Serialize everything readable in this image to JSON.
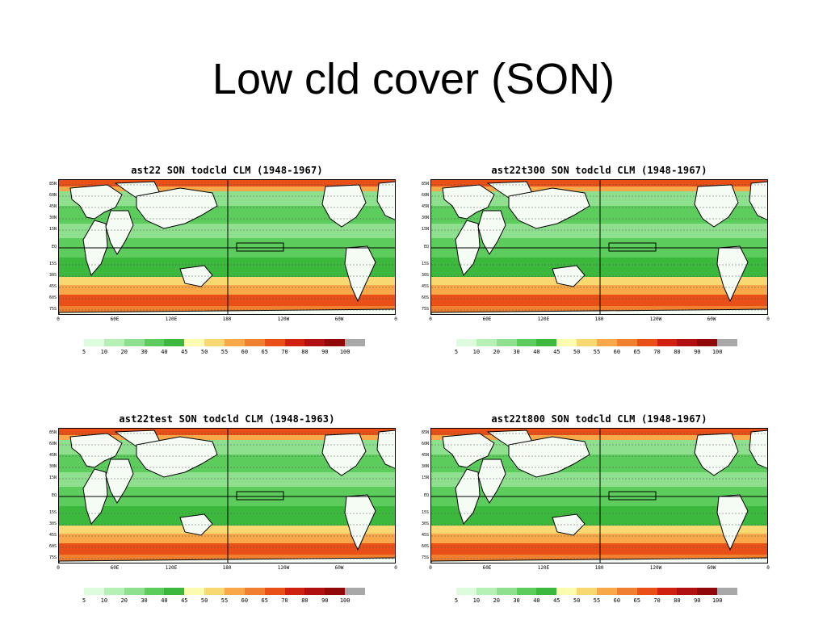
{
  "slide": {
    "title": "Low cld cover (SON)"
  },
  "panels": [
    {
      "title": "ast22 SON todcld CLM (1948-1967)"
    },
    {
      "title": "ast22t300 SON todcld CLM (1948-1967)"
    },
    {
      "title": "ast22test SON todcld CLM (1948-1963)"
    },
    {
      "title": "ast22t800 SON todcld CLM (1948-1967)"
    }
  ],
  "map_axes": {
    "lat_labels": [
      "85N",
      "60N",
      "45N",
      "30N",
      "15N",
      "EQ",
      "15S",
      "30S",
      "45S",
      "60S",
      "75S"
    ],
    "lon_labels": [
      "0",
      "60E",
      "120E",
      "180",
      "120W",
      "60W",
      "0"
    ]
  },
  "colorbar": {
    "labels": [
      "5",
      "10",
      "20",
      "30",
      "40",
      "45",
      "50",
      "55",
      "60",
      "65",
      "70",
      "80",
      "90",
      "100"
    ],
    "colors": [
      "#ddfcdd",
      "#b5f0b5",
      "#8ee08e",
      "#5ccc5c",
      "#3cb83c",
      "#fcfcb0",
      "#f8d870",
      "#f8a848",
      "#f08030",
      "#e85018",
      "#d02010",
      "#b01010",
      "#900808",
      "#a8a8a8"
    ]
  }
}
